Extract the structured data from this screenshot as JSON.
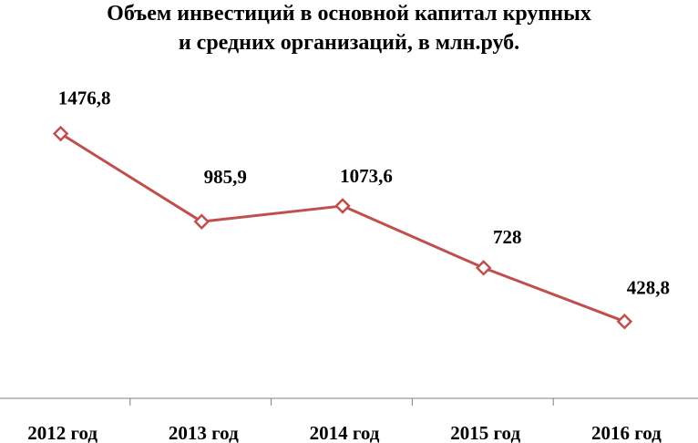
{
  "chart_data": {
    "type": "line",
    "title_lines": [
      "Объем инвестиций в основной капитал крупных",
      "и средних организаций, в млн.руб."
    ],
    "categories": [
      "2012 год",
      "2013 год",
      "2014 год",
      "2015 год",
      "2016 год"
    ],
    "series": [
      {
        "values": [
          1476.8,
          985.9,
          1073.6,
          728,
          428.8
        ],
        "labels": [
          "1476,8",
          "985,9",
          "1073,6",
          "728",
          "428,8"
        ]
      }
    ],
    "ylim": [
      0,
      1800
    ],
    "grid": false,
    "legend": "none",
    "line_color": "#C0504D",
    "marker": "diamond-open"
  }
}
